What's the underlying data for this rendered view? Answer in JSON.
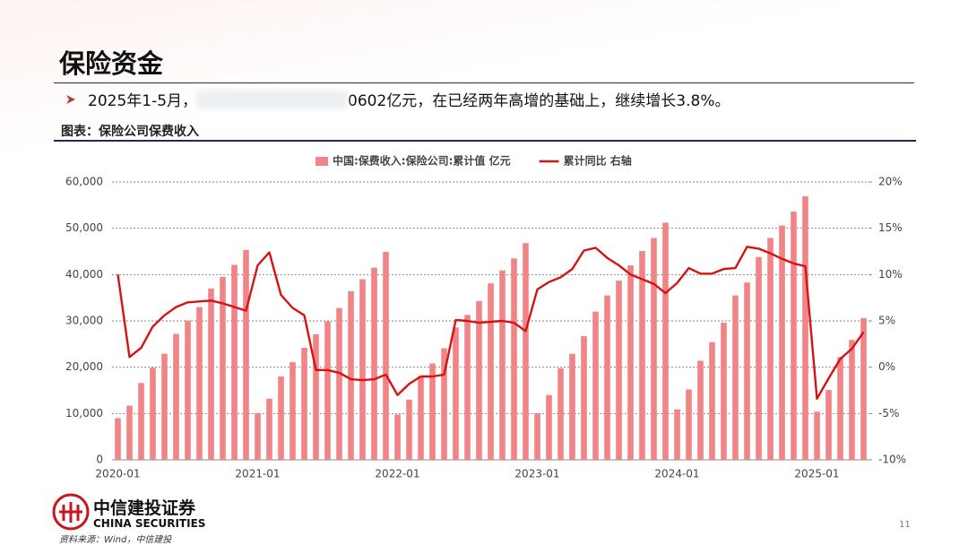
{
  "header": {
    "title": "保险资金",
    "bullet_prefix": "2025年1-5月，",
    "bullet_suffix": "0602亿元，在已经两年高增的基础上，继续增长3.8%。",
    "caption": "图表：保险公司保费收入"
  },
  "chart_data": {
    "type": "bar",
    "categories": [
      "2020-01",
      null,
      null,
      null,
      null,
      null,
      null,
      null,
      null,
      null,
      null,
      null,
      "2021-01",
      null,
      null,
      null,
      null,
      null,
      null,
      null,
      null,
      null,
      null,
      null,
      "2022-01",
      null,
      null,
      null,
      null,
      null,
      null,
      null,
      null,
      null,
      null,
      null,
      "2023-01",
      null,
      null,
      null,
      null,
      null,
      null,
      null,
      null,
      null,
      null,
      null,
      "2024-01",
      null,
      null,
      null,
      null,
      null,
      null,
      null,
      null,
      null,
      null,
      null,
      "2025-01",
      null,
      null,
      null,
      null
    ],
    "series": [
      {
        "name": "中国:保费收入:保险公司:累计值 亿元",
        "type": "bar",
        "color": "#f08486",
        "values": [
          9000,
          11700,
          16600,
          19900,
          22900,
          27200,
          30100,
          33000,
          37000,
          39500,
          42100,
          45300,
          10100,
          13200,
          18000,
          21100,
          24200,
          27100,
          29900,
          32800,
          36400,
          39000,
          41500,
          44900,
          9800,
          13000,
          18100,
          20800,
          24100,
          28600,
          31300,
          34300,
          38100,
          40900,
          43500,
          46800,
          10000,
          14000,
          19800,
          22900,
          26700,
          32000,
          35500,
          38700,
          42000,
          45100,
          47900,
          51200,
          10900,
          15200,
          21400,
          25400,
          29600,
          35500,
          38300,
          43800,
          47900,
          50600,
          53600,
          56900,
          10400,
          15100,
          22200,
          25900,
          30600
        ]
      },
      {
        "name": "累计同比 右轴",
        "type": "line",
        "axis": "y2",
        "color": "#d41414",
        "values": [
          10,
          1.1,
          2.1,
          4.4,
          5.6,
          6.5,
          7.0,
          7.1,
          7.2,
          6.9,
          6.5,
          6.1,
          11.0,
          12.4,
          7.8,
          6.4,
          5.6,
          -0.3,
          -0.3,
          -0.6,
          -1.3,
          -1.4,
          -1.3,
          -0.8,
          -3.0,
          -1.8,
          -1.0,
          -1.0,
          -0.8,
          5.1,
          5.0,
          4.8,
          4.9,
          5.0,
          4.8,
          3.9,
          8.4,
          9.2,
          9.7,
          10.6,
          12.6,
          12.9,
          11.8,
          11.0,
          10.0,
          9.5,
          9.0,
          8.0,
          9.1,
          10.7,
          10.1,
          10.1,
          10.6,
          10.7,
          13.0,
          12.8,
          12.3,
          11.7,
          11.2,
          10.9,
          -3.4,
          -1.2,
          0.9,
          2.0,
          3.8
        ]
      }
    ],
    "ylim": [
      0,
      60000
    ],
    "yticks": [
      0,
      {
        "value": 10000,
        "label": "10,000"
      },
      {
        "value": 20000,
        "label": "20,000"
      },
      {
        "value": 30000,
        "label": "30,000"
      },
      {
        "value": 40000,
        "label": "40,000"
      },
      {
        "value": 50000,
        "label": "50,000"
      },
      {
        "value": 60000,
        "label": "60,000"
      }
    ],
    "y2lim": [
      -10,
      20
    ],
    "y2ticks": [
      {
        "value": -10,
        "label": "-10%"
      },
      {
        "value": -5,
        "label": "-5%"
      },
      {
        "value": 0,
        "label": "0%"
      },
      {
        "value": 5,
        "label": "5%"
      },
      {
        "value": 10,
        "label": "10%"
      },
      {
        "value": 15,
        "label": "15%"
      },
      {
        "value": 20,
        "label": "20%"
      }
    ],
    "grid": true,
    "legend": "top"
  },
  "footer": {
    "company_cn": "中信建投证券",
    "company_en": "CHINA SECURITIES",
    "source": "资料来源：Wind，中信建投",
    "page": "11"
  }
}
